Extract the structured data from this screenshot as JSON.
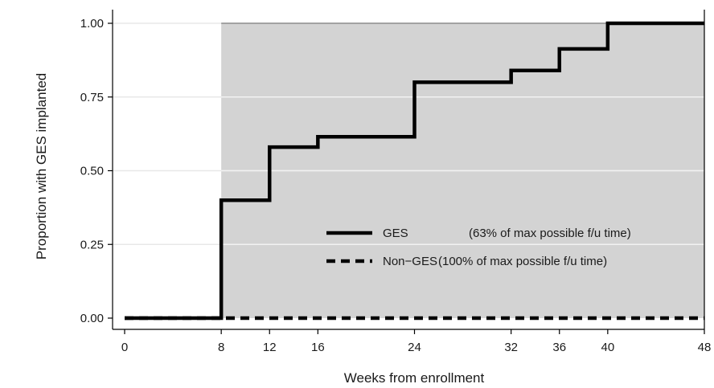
{
  "chart_data": {
    "type": "line",
    "title": "",
    "xlabel": "Weeks from enrollment",
    "ylabel": "Proportion with GES implanted",
    "xlim": [
      0,
      48
    ],
    "ylim": [
      0,
      1
    ],
    "x_ticks": [
      0,
      8,
      12,
      16,
      24,
      32,
      36,
      40,
      48
    ],
    "y_ticks": [
      "0.00",
      "0.25",
      "0.50",
      "0.75",
      "1.00"
    ],
    "grid": true,
    "shaded_region": {
      "x_from": 8,
      "x_to": 48,
      "color": "#d3d3d3"
    },
    "legend_position": "lower-right",
    "series": [
      {
        "name": "GES",
        "legend_note": "(63% of max possible f/u time)",
        "style": "solid",
        "color": "#000000",
        "step": true,
        "x": [
          0,
          8,
          12,
          16,
          24,
          32,
          36,
          40,
          48
        ],
        "y": [
          0.0,
          0.4,
          0.58,
          0.615,
          0.8,
          0.84,
          0.913,
          1.0,
          1.0
        ]
      },
      {
        "name": "Non−GES",
        "legend_note": "(100% of max possible f/u time)",
        "style": "dashed",
        "color": "#000000",
        "step": true,
        "x": [
          0,
          48
        ],
        "y": [
          0.0,
          0.0
        ]
      }
    ]
  }
}
